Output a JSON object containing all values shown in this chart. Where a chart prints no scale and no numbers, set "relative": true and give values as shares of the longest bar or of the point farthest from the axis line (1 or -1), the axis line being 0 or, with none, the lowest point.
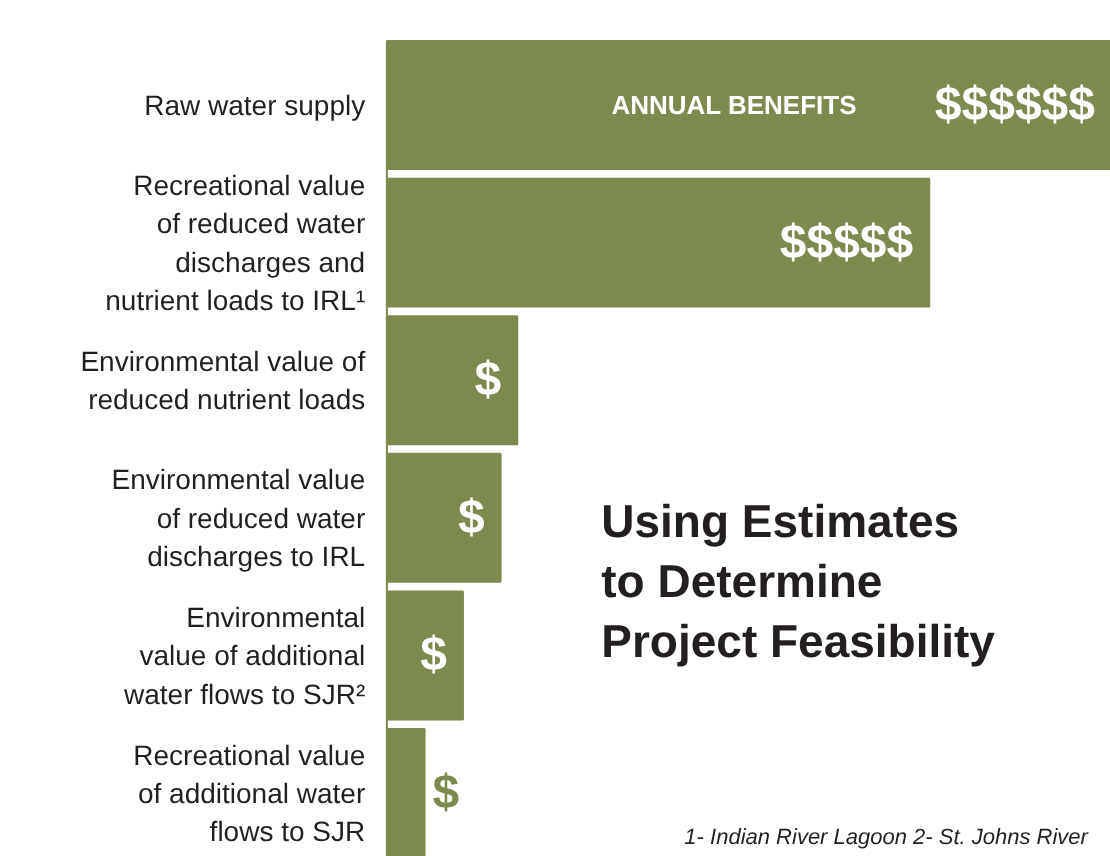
{
  "chart_data": {
    "type": "bar",
    "orientation": "horizontal",
    "relative": true,
    "title": "Using Estimates\nto Determine\nProject Feasibility",
    "categories": [
      "Raw water supply",
      "Recreational value\nof reduced water\ndischarges and\nnutrient loads to IRL¹",
      "Environmental value of\nreduced nutrient loads",
      "Environmental value\nof reduced water\ndischarges to IRL",
      "Environmental\nvalue of additional\nwater flows to SJR²",
      "Recreational value\nof additional water\nflows to SJR"
    ],
    "values": [
      1,
      0.749,
      0.18,
      0.157,
      0.105,
      0.052
    ],
    "color": "#7d8a4e",
    "annotations": [
      "ANNUAL BENEFITS",
      "$$$$$$",
      "$$$$$",
      "$",
      "$",
      "$",
      "$",
      "1- Indian River Lagoon   2- St. Johns River"
    ]
  }
}
